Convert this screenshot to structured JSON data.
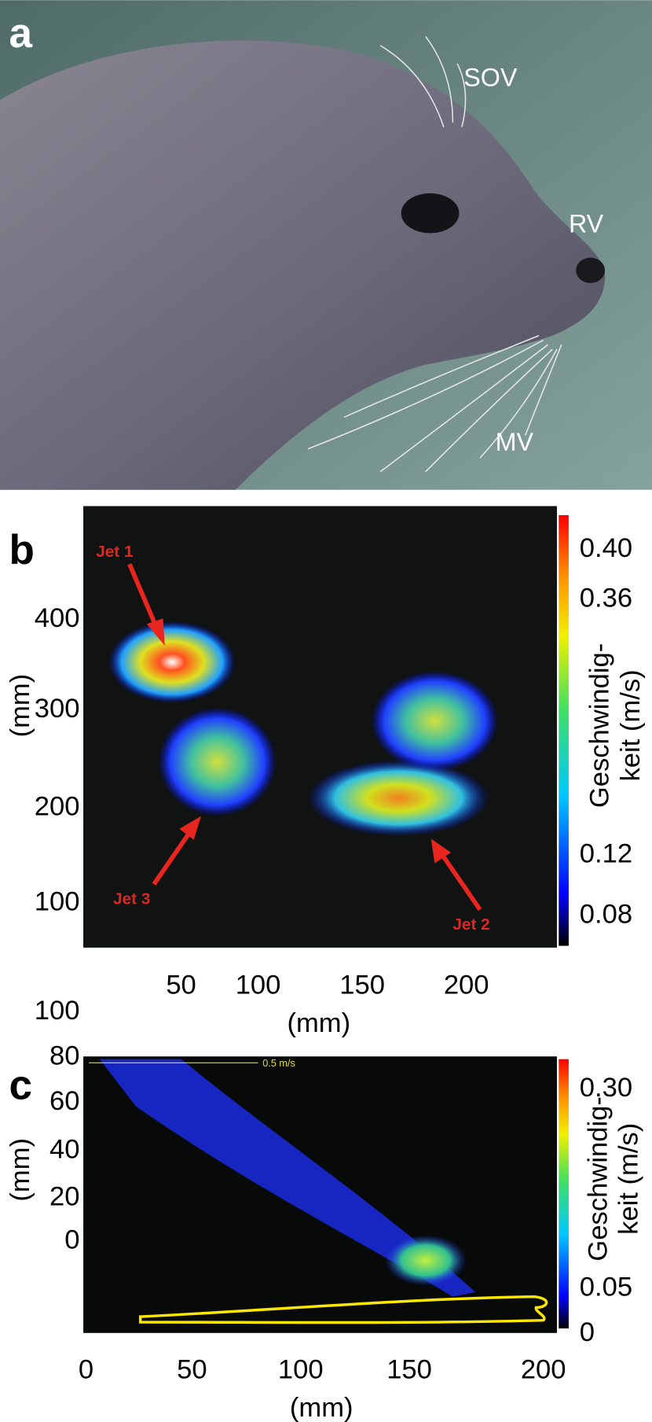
{
  "panels": [
    {
      "label": "a",
      "annotations": [
        "SOV",
        "RV",
        "MV"
      ]
    },
    {
      "label": "b",
      "jets": [
        "Jet 1",
        "Jet 3",
        "Jet 2"
      ],
      "y_ticks": [
        "400",
        "300",
        "200",
        "100"
      ],
      "x_ticks": [
        "50",
        "100",
        "150",
        "200"
      ],
      "x_label": "(mm)",
      "y_label": "(mm)",
      "colorbar_title": [
        "Geschwindig-",
        "keit (m/s)"
      ],
      "colorbar_ticks": [
        "0.40",
        "0.36",
        "0.12",
        "0.08"
      ]
    },
    {
      "label": "c",
      "scale_note": "0.5 m/s",
      "y_ticks": [
        "100",
        "80",
        "60",
        "40",
        "20",
        "0"
      ],
      "x_ticks": [
        "0",
        "50",
        "100",
        "150",
        "200"
      ],
      "x_label": "(mm)",
      "y_label": "(mm)",
      "colorbar_title": [
        "Geschwindig-",
        "keit (m/s)"
      ],
      "colorbar_ticks": [
        "0.30",
        "0.05",
        "0"
      ]
    }
  ]
}
